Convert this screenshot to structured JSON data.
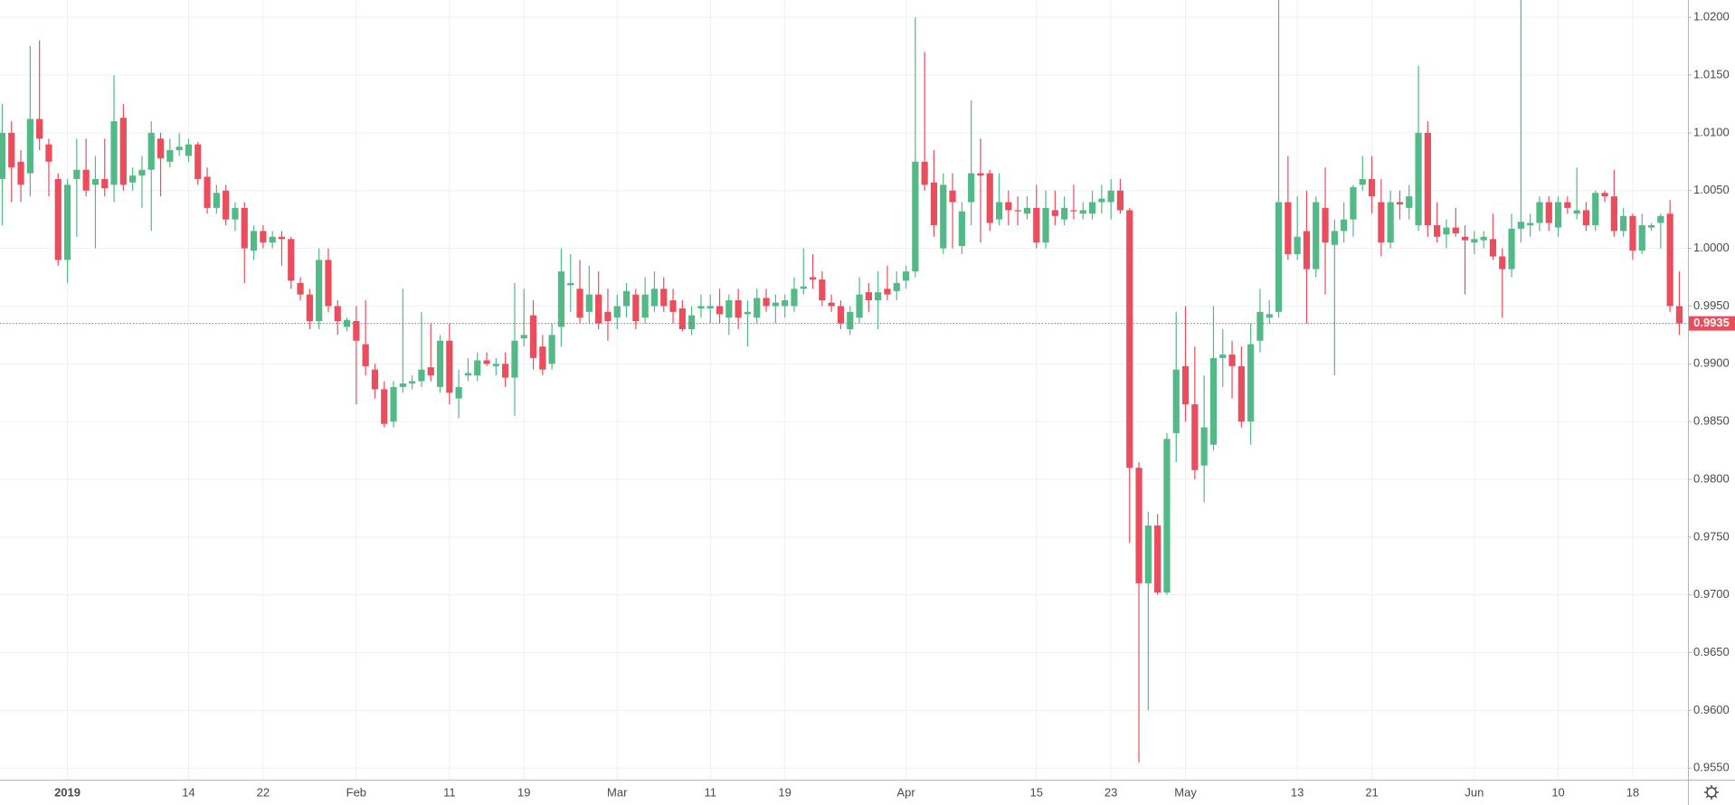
{
  "chart_data": {
    "type": "candlestick",
    "up_color": "#53b987",
    "down_color": "#eb4d5c",
    "grid": true,
    "ylim": [
      0.954,
      1.0215
    ],
    "yticks": [
      {
        "value": 0.955,
        "label": "0.9550"
      },
      {
        "value": 0.96,
        "label": "0.9600"
      },
      {
        "value": 0.965,
        "label": "0.9650"
      },
      {
        "value": 0.97,
        "label": "0.9700"
      },
      {
        "value": 0.975,
        "label": "0.9750"
      },
      {
        "value": 0.98,
        "label": "0.9800"
      },
      {
        "value": 0.985,
        "label": "0.9850"
      },
      {
        "value": 0.99,
        "label": "0.9900"
      },
      {
        "value": 0.995,
        "label": "0.9950"
      },
      {
        "value": 1.0,
        "label": "1.0000"
      },
      {
        "value": 1.005,
        "label": "1.0050"
      },
      {
        "value": 1.01,
        "label": "1.0100"
      },
      {
        "value": 1.015,
        "label": "1.0150"
      },
      {
        "value": 1.02,
        "label": "1.0200"
      }
    ],
    "last_price": 0.9935,
    "categories": [
      null,
      null,
      null,
      null,
      null,
      null,
      null,
      "2019",
      null,
      null,
      null,
      null,
      null,
      null,
      null,
      null,
      null,
      null,
      null,
      null,
      "14",
      null,
      null,
      null,
      null,
      null,
      null,
      null,
      "22",
      null,
      null,
      null,
      null,
      null,
      null,
      null,
      null,
      null,
      "Feb",
      null,
      null,
      null,
      null,
      null,
      null,
      null,
      null,
      null,
      "11",
      null,
      null,
      null,
      null,
      null,
      null,
      null,
      "19",
      null,
      null,
      null,
      null,
      null,
      null,
      null,
      null,
      null,
      "Mar",
      null,
      null,
      null,
      null,
      null,
      null,
      null,
      null,
      null,
      "11",
      null,
      null,
      null,
      null,
      null,
      null,
      null,
      "19",
      null,
      null,
      null,
      null,
      null,
      null,
      null,
      null,
      null,
      null,
      null,
      null,
      "Apr",
      null,
      null,
      null,
      null,
      null,
      null,
      null,
      null,
      null,
      null,
      null,
      null,
      null,
      "15",
      null,
      null,
      null,
      null,
      null,
      null,
      null,
      "23",
      null,
      null,
      null,
      null,
      null,
      null,
      null,
      "May",
      null,
      null,
      null,
      null,
      null,
      null,
      null,
      null,
      null,
      null,
      null,
      "13",
      null,
      null,
      null,
      null,
      null,
      null,
      null,
      "21",
      null,
      null,
      null,
      null,
      null,
      null,
      null,
      null,
      null,
      null,
      "Jun",
      null,
      null,
      null,
      null,
      null,
      null,
      null,
      null,
      "10",
      null,
      null,
      null,
      null,
      null,
      null,
      null,
      "18",
      null,
      null,
      null,
      null,
      null
    ],
    "ohlc": [
      [
        1.006,
        1.0125,
        1.002,
        1.01
      ],
      [
        1.01,
        1.011,
        1.004,
        1.007
      ],
      [
        1.0075,
        1.0085,
        1.004,
        1.0055
      ],
      [
        1.0065,
        1.0175,
        1.0045,
        1.0112
      ],
      [
        1.0112,
        1.018,
        1.0085,
        1.0095
      ],
      [
        1.009,
        1.0095,
        1.0045,
        1.0075
      ],
      [
        1.006,
        1.0065,
        0.9985,
        0.999
      ],
      [
        0.999,
        1.006,
        0.997,
        1.0055
      ],
      [
        1.006,
        1.0095,
        1.001,
        1.0068
      ],
      [
        1.0068,
        1.0095,
        1.0045,
        1.005
      ],
      [
        1.0055,
        1.008,
        1.0,
        1.006
      ],
      [
        1.006,
        1.0095,
        1.0045,
        1.0052
      ],
      [
        1.0055,
        1.015,
        1.004,
        1.011
      ],
      [
        1.0113,
        1.0125,
        1.005,
        1.0055
      ],
      [
        1.0057,
        1.007,
        1.005,
        1.0063
      ],
      [
        1.0063,
        1.008,
        1.0035,
        1.0068
      ],
      [
        1.0068,
        1.011,
        1.0015,
        1.01
      ],
      [
        1.0095,
        1.01,
        1.0045,
        1.0078
      ],
      [
        1.0075,
        1.0095,
        1.007,
        1.0085
      ],
      [
        1.0085,
        1.01,
        1.008,
        1.0088
      ],
      [
        1.008,
        1.0095,
        1.0075,
        1.009
      ],
      [
        1.009,
        1.0092,
        1.0055,
        1.006
      ],
      [
        1.0062,
        1.007,
        1.003,
        1.0035
      ],
      [
        1.0035,
        1.0055,
        1.003,
        1.0048
      ],
      [
        1.005,
        1.0055,
        1.002,
        1.0025
      ],
      [
        1.0025,
        1.004,
        1.0015,
        1.0035
      ],
      [
        1.0035,
        1.004,
        0.997,
        1.0
      ],
      [
        0.9998,
        1.002,
        0.999,
        1.0015
      ],
      [
        1.0015,
        1.002,
        1.0,
        1.0005
      ],
      [
        1.0005,
        1.0015,
        1.0,
        1.001
      ],
      [
        1.001,
        1.0015,
        0.9985,
        1.0008
      ],
      [
        1.0008,
        1.001,
        0.9965,
        0.9972
      ],
      [
        0.997,
        0.9975,
        0.9955,
        0.996
      ],
      [
        0.996,
        0.9965,
        0.993,
        0.9937
      ],
      [
        0.9937,
        1.0,
        0.993,
        0.999
      ],
      [
        0.999,
        1.0,
        0.9945,
        0.995
      ],
      [
        0.995,
        0.9955,
        0.9925,
        0.9937
      ],
      [
        0.9932,
        0.994,
        0.9928,
        0.9938
      ],
      [
        0.9937,
        0.995,
        0.9865,
        0.992
      ],
      [
        0.9917,
        0.9955,
        0.989,
        0.9898
      ],
      [
        0.9895,
        0.99,
        0.987,
        0.9878
      ],
      [
        0.9878,
        0.9885,
        0.9845,
        0.9848
      ],
      [
        0.985,
        0.9885,
        0.9845,
        0.988
      ],
      [
        0.988,
        0.9965,
        0.9875,
        0.9883
      ],
      [
        0.9883,
        0.989,
        0.9878,
        0.9885
      ],
      [
        0.9885,
        0.9945,
        0.988,
        0.9895
      ],
      [
        0.9897,
        0.9935,
        0.9885,
        0.989
      ],
      [
        0.988,
        0.9925,
        0.9875,
        0.992
      ],
      [
        0.992,
        0.9935,
        0.9865,
        0.9875
      ],
      [
        0.987,
        0.9895,
        0.9853,
        0.988
      ],
      [
        0.989,
        0.9905,
        0.9885,
        0.9892
      ],
      [
        0.989,
        0.991,
        0.9885,
        0.9903
      ],
      [
        0.9903,
        0.991,
        0.9898,
        0.99
      ],
      [
        0.9898,
        0.9905,
        0.989,
        0.99
      ],
      [
        0.99,
        0.991,
        0.988,
        0.9888
      ],
      [
        0.9888,
        0.997,
        0.9855,
        0.992
      ],
      [
        0.9922,
        0.9965,
        0.9915,
        0.9925
      ],
      [
        0.9942,
        0.9955,
        0.9895,
        0.9905
      ],
      [
        0.9915,
        0.9925,
        0.989,
        0.9895
      ],
      [
        0.99,
        0.9935,
        0.9895,
        0.9925
      ],
      [
        0.9932,
        1.0,
        0.9915,
        0.998
      ],
      [
        0.9968,
        0.9995,
        0.9945,
        0.997
      ],
      [
        0.9965,
        0.999,
        0.9935,
        0.994
      ],
      [
        0.9945,
        0.9985,
        0.9935,
        0.996
      ],
      [
        0.996,
        0.998,
        0.993,
        0.9935
      ],
      [
        0.9945,
        0.9965,
        0.992,
        0.9937
      ],
      [
        0.994,
        0.996,
        0.993,
        0.995
      ],
      [
        0.995,
        0.997,
        0.994,
        0.9963
      ],
      [
        0.996,
        0.9965,
        0.993,
        0.9937
      ],
      [
        0.994,
        0.9975,
        0.9935,
        0.996
      ],
      [
        0.995,
        0.998,
        0.9945,
        0.9965
      ],
      [
        0.9965,
        0.9975,
        0.9945,
        0.995
      ],
      [
        0.9955,
        0.9965,
        0.9935,
        0.9945
      ],
      [
        0.9948,
        0.9955,
        0.9928,
        0.993
      ],
      [
        0.993,
        0.995,
        0.9925,
        0.9942
      ],
      [
        0.9948,
        0.996,
        0.994,
        0.995
      ],
      [
        0.9948,
        0.996,
        0.9935,
        0.995
      ],
      [
        0.995,
        0.9965,
        0.9935,
        0.9943
      ],
      [
        0.994,
        0.996,
        0.9925,
        0.9955
      ],
      [
        0.9955,
        0.9965,
        0.993,
        0.994
      ],
      [
        0.9943,
        0.9955,
        0.9915,
        0.9945
      ],
      [
        0.994,
        0.9965,
        0.9935,
        0.9957
      ],
      [
        0.9957,
        0.9965,
        0.9945,
        0.995
      ],
      [
        0.995,
        0.996,
        0.9935,
        0.9953
      ],
      [
        0.995,
        0.996,
        0.994,
        0.9955
      ],
      [
        0.995,
        0.9975,
        0.9945,
        0.9965
      ],
      [
        0.9965,
        1.0,
        0.996,
        0.9967
      ],
      [
        0.9975,
        0.9995,
        0.9965,
        0.9973
      ],
      [
        0.9973,
        0.998,
        0.995,
        0.9955
      ],
      [
        0.9953,
        0.996,
        0.9945,
        0.995
      ],
      [
        0.995,
        0.9955,
        0.993,
        0.9935
      ],
      [
        0.993,
        0.995,
        0.9925,
        0.9945
      ],
      [
        0.994,
        0.9975,
        0.9935,
        0.996
      ],
      [
        0.9962,
        0.997,
        0.9945,
        0.9955
      ],
      [
        0.9955,
        0.998,
        0.993,
        0.9962
      ],
      [
        0.9965,
        0.9985,
        0.9955,
        0.996
      ],
      [
        0.9963,
        0.998,
        0.9955,
        0.997
      ],
      [
        0.9972,
        0.9985,
        0.9965,
        0.998
      ],
      [
        0.998,
        1.02,
        0.9975,
        1.0075
      ],
      [
        1.0075,
        1.017,
        1.005,
        1.0055
      ],
      [
        1.0057,
        1.0085,
        1.001,
        1.002
      ],
      [
        1.0,
        1.0065,
        0.9995,
        1.0055
      ],
      [
        1.005,
        1.0065,
        1.0,
        1.004
      ],
      [
        1.0002,
        1.004,
        0.9995,
        1.0032
      ],
      [
        1.004,
        1.0128,
        1.002,
        1.0065
      ],
      [
        1.0065,
        1.0095,
        1.0005,
        1.0063
      ],
      [
        1.0065,
        1.0068,
        1.0015,
        1.0022
      ],
      [
        1.0025,
        1.0065,
        1.002,
        1.004
      ],
      [
        1.004,
        1.005,
        1.002,
        1.0033
      ],
      [
        1.0033,
        1.0045,
        1.002,
        1.0032
      ],
      [
        1.003,
        1.0045,
        1.0025,
        1.0035
      ],
      [
        1.0035,
        1.0055,
        1.0,
        1.0005
      ],
      [
        1.0005,
        1.005,
        1.0,
        1.0035
      ],
      [
        1.0033,
        1.005,
        1.002,
        1.0028
      ],
      [
        1.0025,
        1.0045,
        1.002,
        1.0035
      ],
      [
        1.0033,
        1.0055,
        1.0025,
        1.0032
      ],
      [
        1.003,
        1.004,
        1.0025,
        1.0033
      ],
      [
        1.003,
        1.005,
        1.0025,
        1.004
      ],
      [
        1.004,
        1.0055,
        1.003,
        1.0043
      ],
      [
        1.004,
        1.006,
        1.0025,
        1.005
      ],
      [
        1.005,
        1.006,
        1.003,
        1.0033
      ],
      [
        1.0033,
        1.0035,
        0.9745,
        0.981
      ],
      [
        0.981,
        0.9815,
        0.9555,
        0.971
      ],
      [
        0.971,
        0.9772,
        0.96,
        0.976
      ],
      [
        0.976,
        0.977,
        0.97,
        0.9702
      ],
      [
        0.9702,
        0.984,
        0.97,
        0.9835
      ],
      [
        0.984,
        0.9945,
        0.9815,
        0.9895
      ],
      [
        0.9898,
        0.995,
        0.985,
        0.9865
      ],
      [
        0.9865,
        0.9915,
        0.98,
        0.9808
      ],
      [
        0.9812,
        0.989,
        0.978,
        0.9845
      ],
      [
        0.983,
        0.995,
        0.9825,
        0.9905
      ],
      [
        0.9905,
        0.993,
        0.988,
        0.9908
      ],
      [
        0.9908,
        0.992,
        0.987,
        0.9898
      ],
      [
        0.9898,
        0.9915,
        0.9845,
        0.985
      ],
      [
        0.985,
        0.9935,
        0.983,
        0.9917
      ],
      [
        0.992,
        0.9965,
        0.991,
        0.9945
      ],
      [
        0.994,
        0.9955,
        0.9935,
        0.9943
      ],
      [
        0.9945,
        1.0215,
        0.994,
        1.004
      ],
      [
        1.004,
        1.008,
        0.999,
        0.9995
      ],
      [
        0.9995,
        1.0045,
        0.999,
        1.001
      ],
      [
        1.0015,
        1.005,
        0.9935,
        0.9982
      ],
      [
        0.9982,
        1.0045,
        0.9975,
        1.004
      ],
      [
        1.0035,
        1.007,
        0.996,
        1.0005
      ],
      [
        1.0003,
        1.0025,
        0.989,
        1.0015
      ],
      [
        1.0015,
        1.004,
        1.0005,
        1.0025
      ],
      [
        1.0025,
        1.0055,
        1.001,
        1.0053
      ],
      [
        1.0055,
        1.008,
        1.005,
        1.006
      ],
      [
        1.006,
        1.008,
        1.003,
        1.0045
      ],
      [
        1.004,
        1.006,
        0.9993,
        1.0005
      ],
      [
        1.0005,
        1.005,
        1.0,
        1.004
      ],
      [
        1.004,
        1.005,
        1.0025,
        1.0038
      ],
      [
        1.0035,
        1.0055,
        1.0025,
        1.0045
      ],
      [
        1.002,
        1.0158,
        1.0015,
        1.01
      ],
      [
        1.01,
        1.011,
        1.001,
        1.002
      ],
      [
        1.002,
        1.004,
        1.0005,
        1.001
      ],
      [
        1.0012,
        1.0025,
        1.0,
        1.0018
      ],
      [
        1.0018,
        1.0035,
        1.001,
        1.0013
      ],
      [
        1.001,
        1.002,
        0.996,
        1.0007
      ],
      [
        1.0005,
        1.0015,
        0.9995,
        1.0008
      ],
      [
        1.0007,
        1.0015,
        1.0,
        1.001
      ],
      [
        1.0008,
        1.003,
        0.999,
        0.9993
      ],
      [
        0.9993,
        1.0,
        0.994,
        0.9982
      ],
      [
        0.9982,
        1.003,
        0.9975,
        1.0017
      ],
      [
        1.0017,
        1.0215,
        1.0005,
        1.0023
      ],
      [
        1.002,
        1.003,
        1.001,
        1.0022
      ],
      [
        1.0022,
        1.0045,
        1.0015,
        1.004
      ],
      [
        1.004,
        1.0045,
        1.0015,
        1.0022
      ],
      [
        1.0018,
        1.0045,
        1.001,
        1.004
      ],
      [
        1.004,
        1.0045,
        1.003,
        1.0035
      ],
      [
        1.003,
        1.007,
        1.0025,
        1.0033
      ],
      [
        1.0033,
        1.004,
        1.0015,
        1.002
      ],
      [
        1.002,
        1.005,
        1.0015,
        1.0048
      ],
      [
        1.0048,
        1.005,
        1.004,
        1.0045
      ],
      [
        1.0045,
        1.0068,
        1.001,
        1.0015
      ],
      [
        1.0015,
        1.0035,
        1.001,
        1.0028
      ],
      [
        1.0028,
        1.003,
        0.999,
        0.9998
      ],
      [
        0.9998,
        1.003,
        0.9995,
        1.002
      ],
      [
        1.0018,
        1.0022,
        1.0015,
        1.002
      ],
      [
        1.0022,
        1.003,
        1.0,
        1.0028
      ],
      [
        1.003,
        1.0042,
        0.9945,
        0.995
      ],
      [
        0.995,
        0.998,
        0.9925,
        0.9935
      ]
    ]
  }
}
